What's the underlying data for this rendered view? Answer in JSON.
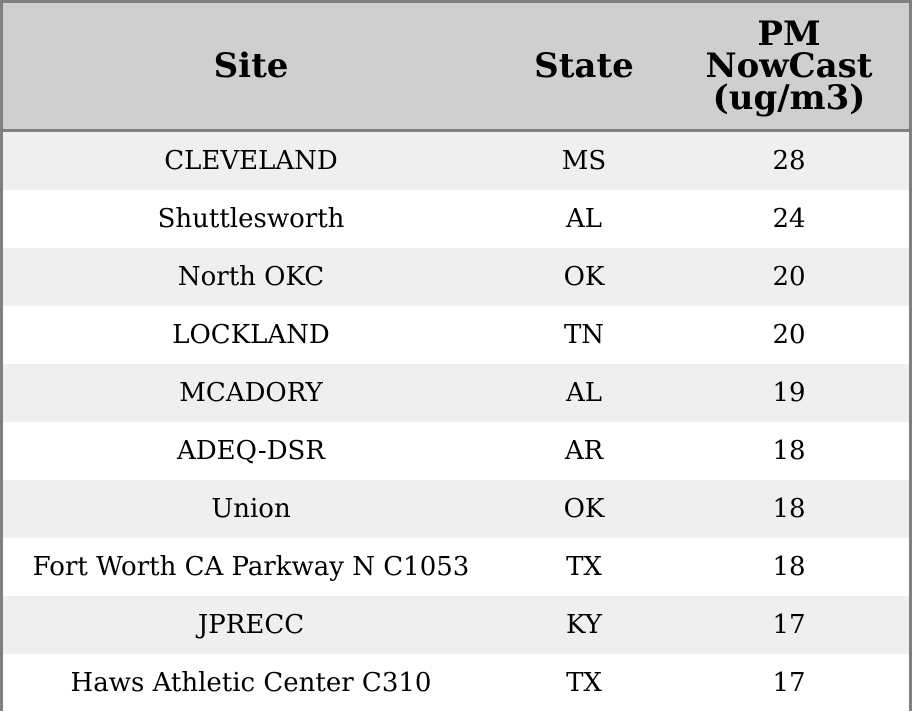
{
  "table": {
    "headers": {
      "site": "Site",
      "state": "State",
      "pm_line1": "PM",
      "pm_line2": "NowCast",
      "pm_line3": "(ug/m3)"
    },
    "rows": [
      {
        "site": "CLEVELAND",
        "state": "MS",
        "pm": "28"
      },
      {
        "site": "Shuttlesworth",
        "state": "AL",
        "pm": "24"
      },
      {
        "site": "North OKC",
        "state": "OK",
        "pm": "20"
      },
      {
        "site": "LOCKLAND",
        "state": "TN",
        "pm": "20"
      },
      {
        "site": "MCADORY",
        "state": "AL",
        "pm": "19"
      },
      {
        "site": "ADEQ-DSR",
        "state": "AR",
        "pm": "18"
      },
      {
        "site": "Union",
        "state": "OK",
        "pm": "18"
      },
      {
        "site": "Fort Worth CA Parkway N C1053",
        "state": "TX",
        "pm": "18"
      },
      {
        "site": "JPRECC",
        "state": "KY",
        "pm": "17"
      },
      {
        "site": "Haws Athletic Center C310",
        "state": "TX",
        "pm": "17"
      }
    ]
  },
  "colors": {
    "header_bg": "#cfcfcf",
    "row_stripe": "#efefef",
    "border": "#808080"
  }
}
